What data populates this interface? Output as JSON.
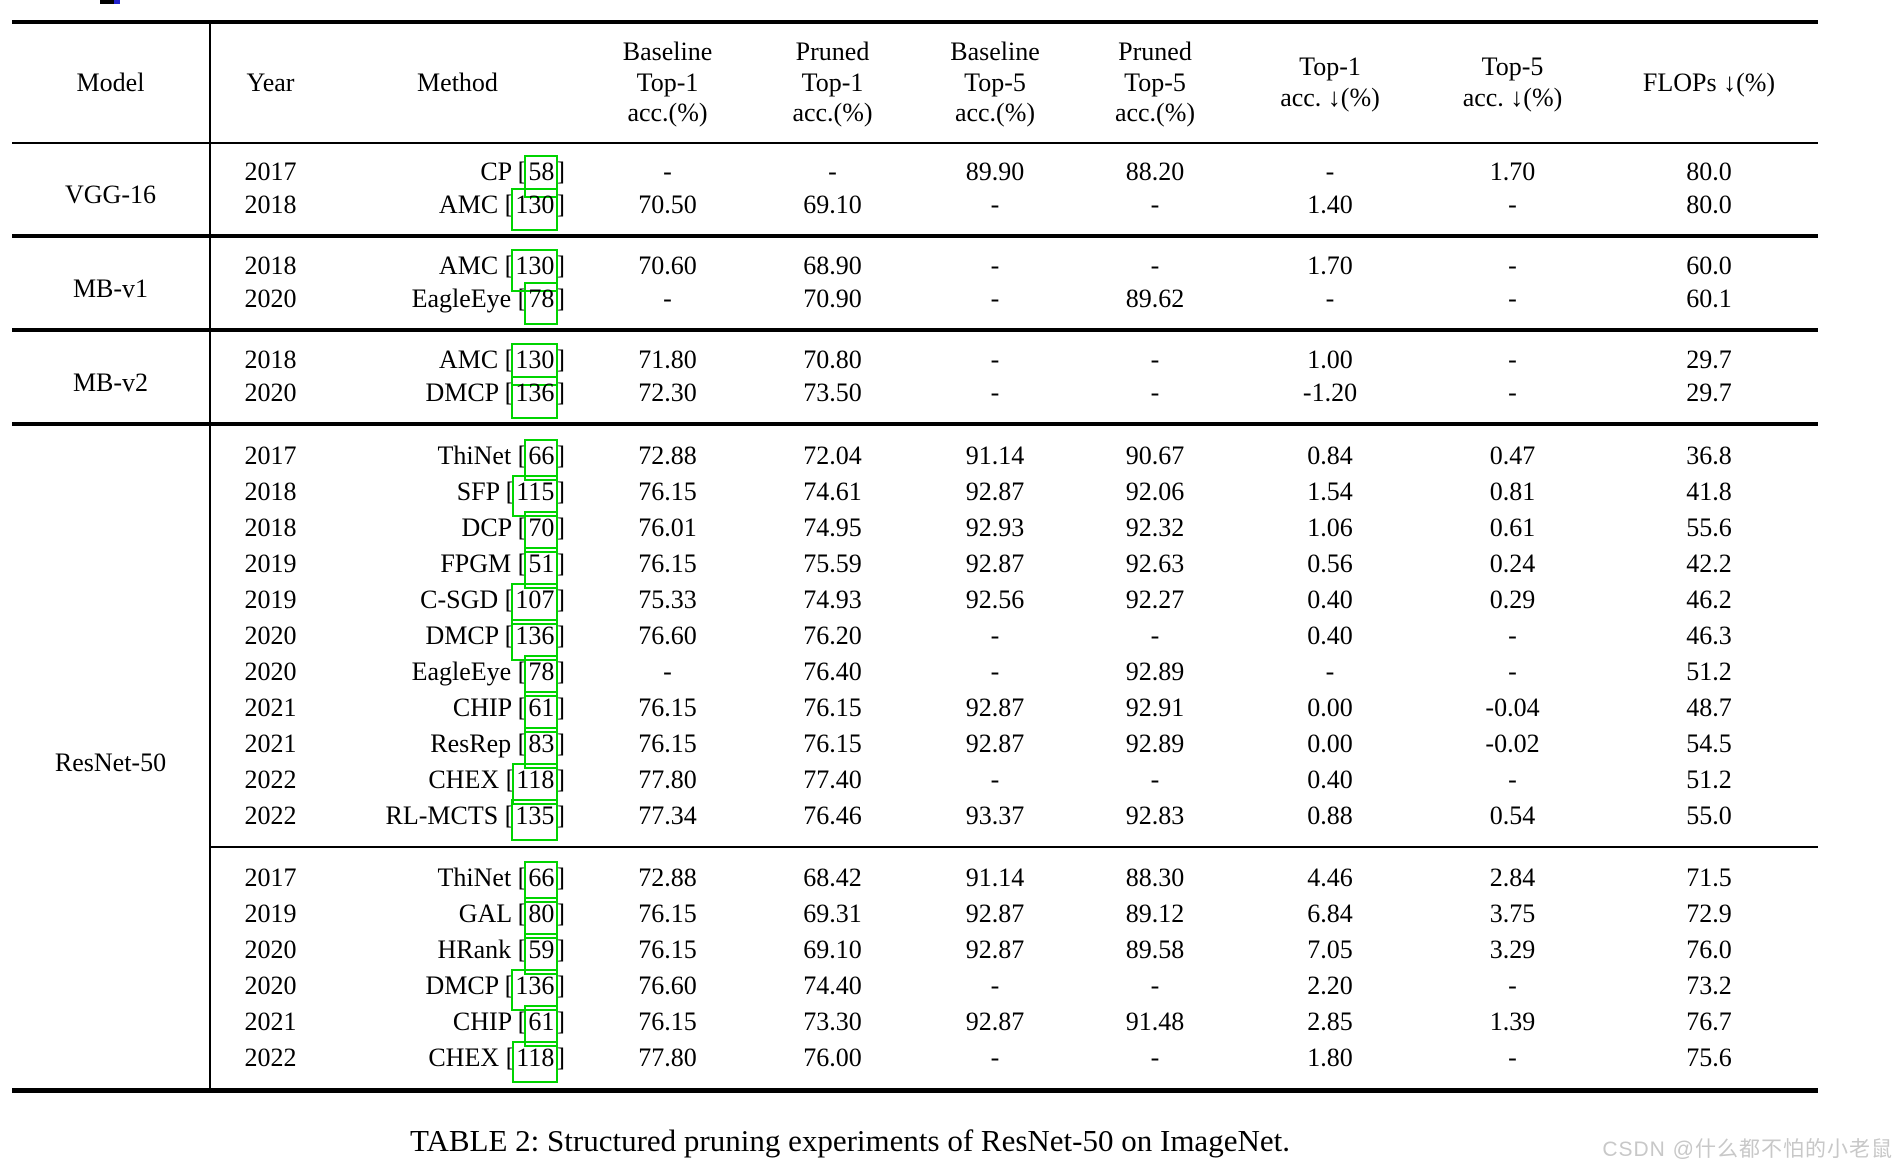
{
  "caption": "TABLE 2: Structured pruning experiments of ResNet-50 on ImageNet.",
  "watermark": "CSDN @什么都不怕的小老鼠",
  "table": {
    "green_box_color": "#00d400",
    "headers": [
      {
        "id": "model",
        "lines": [
          "Model"
        ]
      },
      {
        "id": "year",
        "lines": [
          "Year"
        ]
      },
      {
        "id": "method",
        "lines": [
          "Method"
        ]
      },
      {
        "id": "baseline-top1",
        "lines": [
          "Baseline",
          "Top-1",
          "acc.(%)"
        ]
      },
      {
        "id": "pruned-top1",
        "lines": [
          "Pruned",
          "Top-1",
          "acc.(%)"
        ]
      },
      {
        "id": "baseline-top5",
        "lines": [
          "Baseline",
          "Top-5",
          "acc.(%)"
        ]
      },
      {
        "id": "pruned-top5",
        "lines": [
          "Pruned",
          "Top-5",
          "acc.(%)"
        ]
      },
      {
        "id": "top1-drop",
        "lines": [
          "Top-1",
          "acc. ↓(%)"
        ]
      },
      {
        "id": "top5-drop",
        "lines": [
          "Top-5",
          "acc. ↓(%)"
        ]
      },
      {
        "id": "flops-drop",
        "lines": [
          "FLOPs ↓(%)"
        ]
      }
    ],
    "groups": [
      {
        "model": "VGG-16",
        "subgroups": [
          [
            {
              "year": "2017",
              "method": "CP",
              "cite": "58",
              "values": [
                "-",
                "-",
                "89.90",
                "88.20",
                "-",
                "1.70",
                "80.0"
              ]
            },
            {
              "year": "2018",
              "method": "AMC",
              "cite": "130",
              "values": [
                "70.50",
                "69.10",
                "-",
                "-",
                "1.40",
                "-",
                "80.0"
              ]
            }
          ]
        ]
      },
      {
        "model": "MB-v1",
        "subgroups": [
          [
            {
              "year": "2018",
              "method": "AMC",
              "cite": "130",
              "values": [
                "70.60",
                "68.90",
                "-",
                "-",
                "1.70",
                "-",
                "60.0"
              ]
            },
            {
              "year": "2020",
              "method": "EagleEye",
              "cite": "78",
              "values": [
                "-",
                "70.90",
                "-",
                "89.62",
                "-",
                "-",
                "60.1"
              ]
            }
          ]
        ]
      },
      {
        "model": "MB-v2",
        "subgroups": [
          [
            {
              "year": "2018",
              "method": "AMC",
              "cite": "130",
              "values": [
                "71.80",
                "70.80",
                "-",
                "-",
                "1.00",
                "-",
                "29.7"
              ]
            },
            {
              "year": "2020",
              "method": "DMCP",
              "cite": "136",
              "values": [
                "72.30",
                "73.50",
                "-",
                "-",
                "-1.20",
                "-",
                "29.7"
              ]
            }
          ]
        ]
      },
      {
        "model": "ResNet-50",
        "subgroups": [
          [
            {
              "year": "2017",
              "method": "ThiNet",
              "cite": "66",
              "values": [
                "72.88",
                "72.04",
                "91.14",
                "90.67",
                "0.84",
                "0.47",
                "36.8"
              ]
            },
            {
              "year": "2018",
              "method": "SFP",
              "cite": "115",
              "values": [
                "76.15",
                "74.61",
                "92.87",
                "92.06",
                "1.54",
                "0.81",
                "41.8"
              ]
            },
            {
              "year": "2018",
              "method": "DCP",
              "cite": "70",
              "values": [
                "76.01",
                "74.95",
                "92.93",
                "92.32",
                "1.06",
                "0.61",
                "55.6"
              ]
            },
            {
              "year": "2019",
              "method": "FPGM",
              "cite": "51",
              "values": [
                "76.15",
                "75.59",
                "92.87",
                "92.63",
                "0.56",
                "0.24",
                "42.2"
              ]
            },
            {
              "year": "2019",
              "method": "C-SGD",
              "cite": "107",
              "values": [
                "75.33",
                "74.93",
                "92.56",
                "92.27",
                "0.40",
                "0.29",
                "46.2"
              ]
            },
            {
              "year": "2020",
              "method": "DMCP",
              "cite": "136",
              "values": [
                "76.60",
                "76.20",
                "-",
                "-",
                "0.40",
                "-",
                "46.3"
              ]
            },
            {
              "year": "2020",
              "method": "EagleEye",
              "cite": "78",
              "values": [
                "-",
                "76.40",
                "-",
                "92.89",
                "-",
                "-",
                "51.2"
              ]
            },
            {
              "year": "2021",
              "method": "CHIP",
              "cite": "61",
              "values": [
                "76.15",
                "76.15",
                "92.87",
                "92.91",
                "0.00",
                "-0.04",
                "48.7"
              ]
            },
            {
              "year": "2021",
              "method": "ResRep",
              "cite": "83",
              "values": [
                "76.15",
                "76.15",
                "92.87",
                "92.89",
                "0.00",
                "-0.02",
                "54.5"
              ]
            },
            {
              "year": "2022",
              "method": "CHEX",
              "cite": "118",
              "values": [
                "77.80",
                "77.40",
                "-",
                "-",
                "0.40",
                "-",
                "51.2"
              ]
            },
            {
              "year": "2022",
              "method": "RL-MCTS",
              "cite": "135",
              "values": [
                "77.34",
                "76.46",
                "93.37",
                "92.83",
                "0.88",
                "0.54",
                "55.0"
              ]
            }
          ],
          [
            {
              "year": "2017",
              "method": "ThiNet",
              "cite": "66",
              "values": [
                "72.88",
                "68.42",
                "91.14",
                "88.30",
                "4.46",
                "2.84",
                "71.5"
              ]
            },
            {
              "year": "2019",
              "method": "GAL",
              "cite": "80",
              "values": [
                "76.15",
                "69.31",
                "92.87",
                "89.12",
                "6.84",
                "3.75",
                "72.9"
              ]
            },
            {
              "year": "2020",
              "method": "HRank",
              "cite": "59",
              "values": [
                "76.15",
                "69.10",
                "92.87",
                "89.58",
                "7.05",
                "3.29",
                "76.0"
              ]
            },
            {
              "year": "2020",
              "method": "DMCP",
              "cite": "136",
              "values": [
                "76.60",
                "74.40",
                "-",
                "-",
                "2.20",
                "-",
                "73.2"
              ]
            },
            {
              "year": "2021",
              "method": "CHIP",
              "cite": "61",
              "values": [
                "76.15",
                "73.30",
                "92.87",
                "91.48",
                "2.85",
                "1.39",
                "76.7"
              ]
            },
            {
              "year": "2022",
              "method": "CHEX",
              "cite": "118",
              "values": [
                "77.80",
                "76.00",
                "-",
                "-",
                "1.80",
                "-",
                "75.6"
              ]
            }
          ]
        ]
      }
    ]
  }
}
